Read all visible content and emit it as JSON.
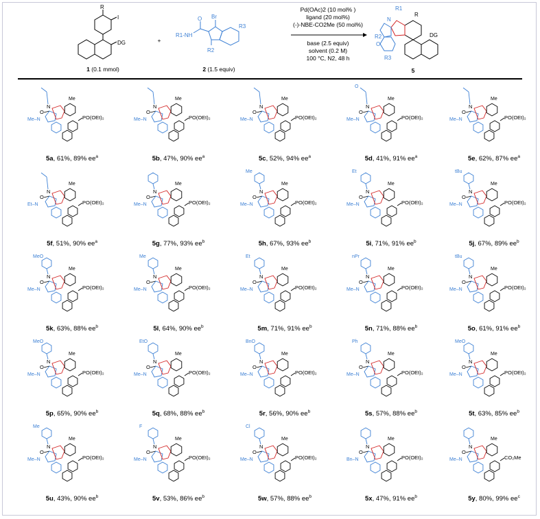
{
  "header": {
    "reactant1": {
      "label_num": "1",
      "label_amt": "(0.1 mmol)",
      "sub_R": "R",
      "sub_I": "I",
      "sub_DG": "DG"
    },
    "plus": "+",
    "reactant2": {
      "label_num": "2",
      "label_amt": "(1.5 equiv)",
      "sub_Br": "Br",
      "sub_R3": "R3",
      "sub_R1NH": "R1-NH",
      "sub_R2": "R2",
      "sub_O": "O"
    },
    "conditions_above": [
      "Pd(OAc)2 (10 mol% )",
      "ligand (20 mol%)",
      "(-)-NBE-CO2Me (50 mol%)"
    ],
    "conditions_below": [
      "base (2.5 equiv)",
      "solvent (0.2 M)",
      "100 °C, N2, 48 h"
    ],
    "product": {
      "label_num": "5",
      "sub_R1": "R1",
      "sub_R": "R",
      "sub_R2": "R2",
      "sub_R3": "R3",
      "sub_O": "O",
      "sub_N": "N",
      "sub_DG": "DG"
    }
  },
  "compounds": [
    {
      "id": "5a",
      "yield": "61%",
      "ee": "89% ee",
      "note": "a",
      "n_sub": "Me",
      "dg": "PO(OEt)2",
      "n_aryl": false,
      "extra": ""
    },
    {
      "id": "5b",
      "yield": "47%",
      "ee": "90% ee",
      "note": "a",
      "n_sub": "Me",
      "dg": "PO(OEt)2",
      "n_aryl": false,
      "extra": ""
    },
    {
      "id": "5c",
      "yield": "52%",
      "ee": "94% ee",
      "note": "a",
      "n_sub": "Me",
      "dg": "PO(OEt)2",
      "n_aryl": false,
      "extra": ""
    },
    {
      "id": "5d",
      "yield": "41%",
      "ee": "91% ee",
      "note": "a",
      "n_sub": "Me",
      "dg": "PO(OEt)2",
      "n_aryl": false,
      "extra": "O"
    },
    {
      "id": "5e",
      "yield": "62%",
      "ee": "87% ee",
      "note": "a",
      "n_sub": "Me",
      "dg": "PO(OEt)2",
      "n_aryl": false,
      "extra": ""
    },
    {
      "id": "5f",
      "yield": "51%",
      "ee": "90% ee",
      "note": "a",
      "n_sub": "Et",
      "dg": "PO(OEt)2",
      "n_aryl": false,
      "extra": ""
    },
    {
      "id": "5g",
      "yield": "77%",
      "ee": "93% ee",
      "note": "b",
      "n_sub": "Me",
      "dg": "PO(OEt)2",
      "n_aryl": true,
      "extra": ""
    },
    {
      "id": "5h",
      "yield": "67%",
      "ee": "93% ee",
      "note": "b",
      "n_sub": "Me",
      "dg": "PO(OEt)2",
      "n_aryl": true,
      "extra": "Me"
    },
    {
      "id": "5i",
      "yield": "71%",
      "ee": "91% ee",
      "note": "b",
      "n_sub": "Me",
      "dg": "PO(OEt)2",
      "n_aryl": true,
      "extra": "Et"
    },
    {
      "id": "5j",
      "yield": "67%",
      "ee": "89% ee",
      "note": "b",
      "n_sub": "Me",
      "dg": "PO(OEt)2",
      "n_aryl": true,
      "extra": "tBu"
    },
    {
      "id": "5k",
      "yield": "63%",
      "ee": "88% ee",
      "note": "b",
      "n_sub": "Me",
      "dg": "PO(OEt)2",
      "n_aryl": true,
      "extra": "MeO"
    },
    {
      "id": "5l",
      "yield": "64%",
      "ee": "90% ee",
      "note": "b",
      "n_sub": "Me",
      "dg": "PO(OEt)2",
      "n_aryl": true,
      "extra": "Me"
    },
    {
      "id": "5m",
      "yield": "71%",
      "ee": "91% ee",
      "note": "b",
      "n_sub": "Me",
      "dg": "PO(OEt)2",
      "n_aryl": true,
      "extra": "Et"
    },
    {
      "id": "5n",
      "yield": "71%",
      "ee": "88% ee",
      "note": "b",
      "n_sub": "Me",
      "dg": "PO(OEt)2",
      "n_aryl": true,
      "extra": "nPr"
    },
    {
      "id": "5o",
      "yield": "61%",
      "ee": "91% ee",
      "note": "b",
      "n_sub": "Me",
      "dg": "PO(OEt)2",
      "n_aryl": true,
      "extra": "tBu"
    },
    {
      "id": "5p",
      "yield": "65%",
      "ee": "90% ee",
      "note": "b",
      "n_sub": "Me",
      "dg": "PO(OEt)2",
      "n_aryl": true,
      "extra": "MeO"
    },
    {
      "id": "5q",
      "yield": "68%",
      "ee": "88% ee",
      "note": "b",
      "n_sub": "Me",
      "dg": "PO(OEt)2",
      "n_aryl": true,
      "extra": "EtO"
    },
    {
      "id": "5r",
      "yield": "56%",
      "ee": "90% ee",
      "note": "b",
      "n_sub": "Me",
      "dg": "PO(OEt)2",
      "n_aryl": true,
      "extra": "BnO"
    },
    {
      "id": "5s",
      "yield": "57%",
      "ee": "88% ee",
      "note": "b",
      "n_sub": "Me",
      "dg": "PO(OEt)2",
      "n_aryl": true,
      "extra": "Ph"
    },
    {
      "id": "5t",
      "yield": "63%",
      "ee": "85% ee",
      "note": "b",
      "n_sub": "Me",
      "dg": "PO(OEt)2",
      "n_aryl": true,
      "extra": "MeO"
    },
    {
      "id": "5u",
      "yield": "43%",
      "ee": "90% ee",
      "note": "b",
      "n_sub": "Me",
      "dg": "PO(OEt)2",
      "n_aryl": true,
      "extra": "Me"
    },
    {
      "id": "5v",
      "yield": "53%",
      "ee": "86% ee",
      "note": "b",
      "n_sub": "Me",
      "dg": "PO(OEt)2",
      "n_aryl": true,
      "extra": "F"
    },
    {
      "id": "5w",
      "yield": "57%",
      "ee": "88% ee",
      "note": "b",
      "n_sub": "Me",
      "dg": "PO(OEt)2",
      "n_aryl": true,
      "extra": "Cl"
    },
    {
      "id": "5x",
      "yield": "47%",
      "ee": "91% ee",
      "note": "b",
      "n_sub": "Bn",
      "dg": "PO(OEt)2",
      "n_aryl": true,
      "extra": ""
    },
    {
      "id": "5y",
      "yield": "80%",
      "ee": "99% ee",
      "note": "c",
      "n_sub": "Me",
      "dg": "CO2Me",
      "n_aryl": true,
      "extra": ""
    }
  ],
  "colors": {
    "blue": "#3b7fd4",
    "red": "#d22020",
    "black": "#000000",
    "frame": "#c8c8d8"
  }
}
